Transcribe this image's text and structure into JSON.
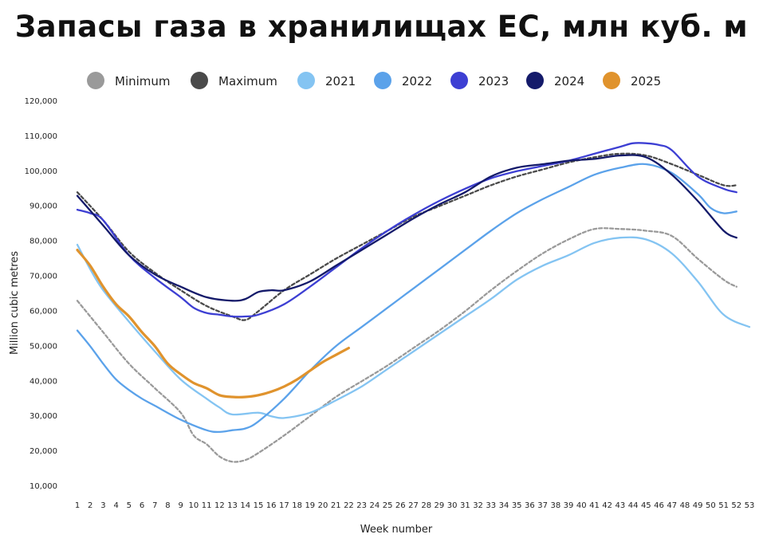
{
  "title": "Запасы газа в хранилищах ЕС, млн куб. м",
  "chart_data": {
    "type": "line",
    "xlabel": "Week number",
    "ylabel": "Million cubic metres",
    "xlim": [
      1,
      53
    ],
    "ylim": [
      10000,
      120000
    ],
    "yticks": [
      10000,
      20000,
      30000,
      40000,
      50000,
      60000,
      70000,
      80000,
      90000,
      100000,
      110000,
      120000
    ],
    "ytick_labels": [
      "10,000",
      "20,000",
      "30,000",
      "40,000",
      "50,000",
      "60,000",
      "70,000",
      "80,000",
      "90,000",
      "100,000",
      "110,000",
      "120,000"
    ],
    "legend_position": "top",
    "grid": false,
    "series": [
      {
        "name": "Minimum",
        "color": "#9a9a9a",
        "dashed": true,
        "x": [
          1,
          3,
          5,
          7,
          9,
          10,
          11,
          12,
          13,
          14,
          15,
          17,
          19,
          21,
          23,
          25,
          27,
          29,
          31,
          33,
          35,
          37,
          39,
          41,
          43,
          45,
          47,
          49,
          51,
          52
        ],
        "y": [
          63000,
          54000,
          45000,
          38000,
          31000,
          24500,
          22000,
          18500,
          17000,
          17500,
          19500,
          24500,
          30000,
          35500,
          40000,
          44500,
          49500,
          54500,
          60000,
          66000,
          71500,
          76500,
          80500,
          83500,
          83500,
          83000,
          81500,
          75000,
          69000,
          67000
        ]
      },
      {
        "name": "Maximum",
        "color": "#4a4a4a",
        "dashed": true,
        "x": [
          1,
          3,
          5,
          7,
          9,
          11,
          13,
          14,
          15,
          17,
          19,
          21,
          23,
          25,
          27,
          29,
          31,
          33,
          35,
          37,
          39,
          41,
          43,
          45,
          47,
          49,
          51,
          52
        ],
        "y": [
          94000,
          86000,
          77000,
          71000,
          66000,
          61500,
          58500,
          57500,
          60000,
          66000,
          70500,
          75000,
          79000,
          83000,
          87000,
          90000,
          93000,
          96000,
          98500,
          100500,
          102500,
          104000,
          105000,
          104500,
          102000,
          99000,
          96000,
          96000
        ]
      },
      {
        "name": "2021",
        "color": "#84c4f2",
        "dashed": false,
        "x": [
          1,
          2,
          3,
          5,
          7,
          9,
          11,
          12,
          13,
          15,
          16,
          17,
          19,
          21,
          23,
          25,
          27,
          29,
          31,
          33,
          35,
          37,
          39,
          41,
          43,
          45,
          47,
          49,
          51,
          53
        ],
        "y": [
          79000,
          72000,
          66000,
          57000,
          48500,
          40500,
          35000,
          32500,
          30500,
          31000,
          30000,
          29500,
          31000,
          34500,
          38500,
          43500,
          48500,
          53500,
          58500,
          63500,
          69000,
          73000,
          76000,
          79500,
          81000,
          80500,
          76500,
          68500,
          59000,
          55500
        ]
      },
      {
        "name": "2022",
        "color": "#5ba2ea",
        "dashed": false,
        "x": [
          1,
          2,
          3,
          4,
          5,
          6,
          7,
          9,
          11,
          12,
          13,
          14,
          15,
          17,
          19,
          21,
          23,
          25,
          27,
          29,
          31,
          33,
          35,
          37,
          39,
          41,
          43,
          45,
          47,
          49,
          50,
          51,
          52
        ],
        "y": [
          54500,
          50000,
          45000,
          40500,
          37500,
          35000,
          33000,
          29000,
          26000,
          25500,
          26000,
          26500,
          28500,
          35000,
          43000,
          50000,
          55500,
          61000,
          66500,
          72000,
          77500,
          83000,
          88000,
          92000,
          95500,
          99000,
          101000,
          102000,
          99500,
          93500,
          89500,
          88000,
          88500
        ]
      },
      {
        "name": "2023",
        "color": "#3d3fd3",
        "dashed": false,
        "x": [
          1,
          2,
          3,
          5,
          7,
          9,
          10,
          11,
          12,
          13,
          14,
          15,
          17,
          19,
          21,
          23,
          25,
          27,
          29,
          31,
          33,
          35,
          37,
          39,
          41,
          43,
          44,
          45,
          46,
          47,
          49,
          51,
          52
        ],
        "y": [
          89000,
          88000,
          86000,
          76000,
          69500,
          64000,
          61000,
          59500,
          59000,
          58500,
          58500,
          59000,
          62000,
          67000,
          72500,
          78000,
          83000,
          87500,
          91500,
          95000,
          98000,
          100000,
          101500,
          103000,
          105000,
          107000,
          108000,
          108000,
          107500,
          106000,
          98500,
          95000,
          94000
        ]
      },
      {
        "name": "2024",
        "color": "#141a6a",
        "dashed": false,
        "x": [
          1,
          3,
          5,
          7,
          9,
          11,
          13,
          14,
          15,
          16,
          17,
          19,
          21,
          23,
          25,
          27,
          29,
          31,
          33,
          35,
          37,
          39,
          41,
          43,
          45,
          47,
          49,
          51,
          52
        ],
        "y": [
          93000,
          84500,
          76000,
          70500,
          67000,
          64000,
          63000,
          63500,
          65500,
          66000,
          66000,
          68500,
          73000,
          77500,
          82000,
          86500,
          90500,
          94000,
          98500,
          101000,
          102000,
          103000,
          103500,
          104500,
          104000,
          99000,
          91500,
          83000,
          81000
        ]
      },
      {
        "name": "2025",
        "color": "#e0932d",
        "dashed": false,
        "x": [
          1,
          2,
          3,
          4,
          5,
          6,
          7,
          8,
          9,
          10,
          11,
          12,
          13,
          14,
          15,
          16,
          17,
          18,
          19,
          20,
          21,
          22
        ],
        "y": [
          77500,
          73000,
          67000,
          62000,
          58500,
          54000,
          50000,
          45000,
          42000,
          39500,
          38000,
          36000,
          35500,
          35500,
          36000,
          37000,
          38500,
          40500,
          43000,
          45500,
          47500,
          49500
        ]
      }
    ]
  }
}
